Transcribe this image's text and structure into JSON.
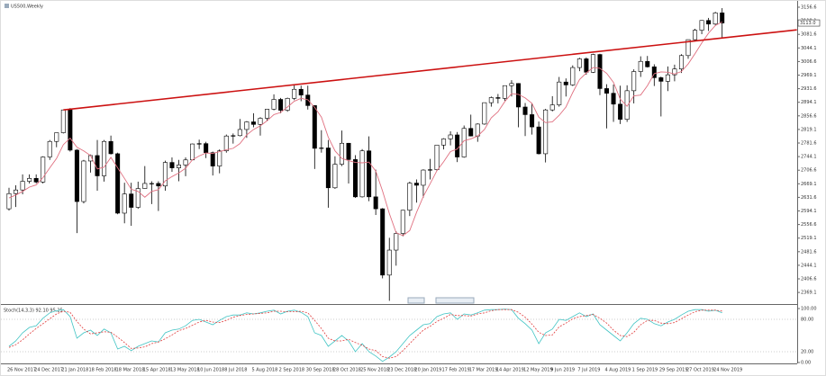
{
  "chart_data": [
    {
      "type": "candlestick",
      "title": "US500,Weekly",
      "categories": [
        "26 Nov 2017",
        null,
        null,
        null,
        "24 Dec 2017",
        null,
        null,
        null,
        "21 Jan 2018",
        null,
        null,
        null,
        "18 Feb 2018",
        null,
        null,
        null,
        "18 Mar 2018",
        null,
        null,
        null,
        "15 Apr 2018",
        null,
        null,
        null,
        "13 May 2018",
        null,
        null,
        null,
        "10 Jun 2018",
        null,
        null,
        null,
        "8 Jul 2018",
        null,
        null,
        null,
        "5 Aug 2018",
        null,
        null,
        null,
        "2 Sep 2018",
        null,
        null,
        null,
        "30 Sep 2018",
        null,
        null,
        null,
        "28 Oct 2018",
        null,
        null,
        null,
        "25 Nov 2018",
        null,
        null,
        null,
        "23 Dec 2018",
        null,
        null,
        null,
        "20 Jan 2019",
        null,
        null,
        null,
        "17 Feb 2019",
        null,
        null,
        null,
        "17 Mar 2019",
        null,
        null,
        null,
        "14 Apr 2019",
        null,
        null,
        null,
        "12 May 2019",
        null,
        null,
        null,
        "9 Jun 2019",
        null,
        null,
        null,
        "7 Jul 2019",
        null,
        null,
        null,
        "4 Aug 2019",
        null,
        null,
        null,
        "1 Sep 2019",
        null,
        null,
        null,
        "29 Sep 2019",
        null,
        null,
        null,
        "27 Oct 2019",
        null,
        null,
        null,
        "24 Nov 2019",
        null
      ],
      "candles": [
        [
          2600,
          2658,
          2595,
          2642
        ],
        [
          2642,
          2665,
          2605,
          2652
        ],
        [
          2652,
          2695,
          2640,
          2676
        ],
        [
          2676,
          2695,
          2670,
          2684
        ],
        [
          2684,
          2695,
          2670,
          2674
        ],
        [
          2674,
          2745,
          2670,
          2743
        ],
        [
          2743,
          2790,
          2735,
          2786
        ],
        [
          2786,
          2810,
          2770,
          2810
        ],
        [
          2810,
          2873,
          2808,
          2873
        ],
        [
          2873,
          2878,
          2758,
          2762
        ],
        [
          2762,
          2765,
          2533,
          2620
        ],
        [
          2620,
          2735,
          2615,
          2732
        ],
        [
          2732,
          2750,
          2700,
          2747
        ],
        [
          2747,
          2790,
          2650,
          2691
        ],
        [
          2691,
          2790,
          2675,
          2786
        ],
        [
          2786,
          2802,
          2750,
          2752
        ],
        [
          2752,
          2755,
          2585,
          2588
        ],
        [
          2588,
          2672,
          2560,
          2641
        ],
        [
          2641,
          2672,
          2553,
          2604
        ],
        [
          2604,
          2675,
          2600,
          2656
        ],
        [
          2656,
          2718,
          2655,
          2670
        ],
        [
          2670,
          2676,
          2613,
          2670
        ],
        [
          2670,
          2676,
          2594,
          2663
        ],
        [
          2663,
          2733,
          2650,
          2728
        ],
        [
          2728,
          2742,
          2702,
          2713
        ],
        [
          2713,
          2735,
          2676,
          2721
        ],
        [
          2721,
          2742,
          2690,
          2735
        ],
        [
          2735,
          2780,
          2735,
          2779
        ],
        [
          2779,
          2791,
          2765,
          2780
        ],
        [
          2780,
          2785,
          2740,
          2755
        ],
        [
          2755,
          2758,
          2692,
          2718
        ],
        [
          2718,
          2764,
          2698,
          2760
        ],
        [
          2760,
          2805,
          2755,
          2801
        ],
        [
          2801,
          2808,
          2780,
          2802
        ],
        [
          2802,
          2848,
          2800,
          2819
        ],
        [
          2819,
          2842,
          2796,
          2840
        ],
        [
          2840,
          2864,
          2825,
          2833
        ],
        [
          2833,
          2853,
          2802,
          2850
        ],
        [
          2850,
          2876,
          2842,
          2875
        ],
        [
          2875,
          2916,
          2872,
          2902
        ],
        [
          2902,
          2906,
          2864,
          2872
        ],
        [
          2872,
          2907,
          2868,
          2905
        ],
        [
          2905,
          2941,
          2900,
          2930
        ],
        [
          2930,
          2940,
          2897,
          2914
        ],
        [
          2914,
          2940,
          2874,
          2885
        ],
        [
          2885,
          2886,
          2710,
          2767
        ],
        [
          2767,
          2817,
          2755,
          2768
        ],
        [
          2768,
          2790,
          2603,
          2658
        ],
        [
          2658,
          2745,
          2655,
          2723
        ],
        [
          2723,
          2816,
          2718,
          2781
        ],
        [
          2781,
          2782,
          2670,
          2736
        ],
        [
          2736,
          2748,
          2630,
          2633
        ],
        [
          2633,
          2765,
          2631,
          2760
        ],
        [
          2760,
          2800,
          2621,
          2633
        ],
        [
          2633,
          2708,
          2583,
          2600
        ],
        [
          2600,
          2602,
          2408,
          2417
        ],
        [
          2417,
          2520,
          2346,
          2486
        ],
        [
          2486,
          2538,
          2443,
          2532
        ],
        [
          2532,
          2597,
          2524,
          2596
        ],
        [
          2596,
          2675,
          2580,
          2671
        ],
        [
          2671,
          2681,
          2617,
          2665
        ],
        [
          2665,
          2709,
          2631,
          2707
        ],
        [
          2707,
          2738,
          2681,
          2708
        ],
        [
          2708,
          2776,
          2705,
          2776
        ],
        [
          2776,
          2795,
          2764,
          2793
        ],
        [
          2793,
          2814,
          2775,
          2804
        ],
        [
          2804,
          2812,
          2729,
          2743
        ],
        [
          2743,
          2830,
          2741,
          2822
        ],
        [
          2822,
          2860,
          2800,
          2801
        ],
        [
          2801,
          2836,
          2785,
          2834
        ],
        [
          2834,
          2893,
          2832,
          2893
        ],
        [
          2893,
          2910,
          2882,
          2907
        ],
        [
          2907,
          2917,
          2891,
          2905
        ],
        [
          2905,
          2940,
          2898,
          2940
        ],
        [
          2940,
          2955,
          2910,
          2946
        ],
        [
          2946,
          2947,
          2825,
          2881
        ],
        [
          2881,
          2892,
          2801,
          2860
        ],
        [
          2860,
          2892,
          2805,
          2826
        ],
        [
          2826,
          2841,
          2750,
          2752
        ],
        [
          2752,
          2876,
          2728,
          2873
        ],
        [
          2873,
          2911,
          2869,
          2887
        ],
        [
          2887,
          2964,
          2882,
          2950
        ],
        [
          2950,
          2960,
          2910,
          2942
        ],
        [
          2942,
          2996,
          2939,
          2990
        ],
        [
          2990,
          3017,
          2980,
          3014
        ],
        [
          3014,
          3018,
          2970,
          2977
        ],
        [
          2977,
          3028,
          2975,
          3026
        ],
        [
          3026,
          3028,
          2914,
          2932
        ],
        [
          2932,
          2944,
          2822,
          2919
        ],
        [
          2919,
          2943,
          2840,
          2889
        ],
        [
          2889,
          2940,
          2834,
          2847
        ],
        [
          2847,
          2941,
          2840,
          2926
        ],
        [
          2926,
          2985,
          2891,
          2979
        ],
        [
          2979,
          3021,
          2964,
          3007
        ],
        [
          3007,
          3022,
          2990,
          2992
        ],
        [
          2992,
          2999,
          2939,
          2962
        ],
        [
          2962,
          2965,
          2855,
          2952
        ],
        [
          2952,
          2993,
          2925,
          2970
        ],
        [
          2970,
          2998,
          2952,
          2986
        ],
        [
          2986,
          3027,
          2975,
          3023
        ],
        [
          3023,
          3067,
          3014,
          3067
        ],
        [
          3067,
          3097,
          3062,
          3093
        ],
        [
          3093,
          3121,
          3082,
          3120
        ],
        [
          3120,
          3127,
          3091,
          3110
        ],
        [
          3110,
          3144,
          3107,
          3141
        ],
        [
          3141,
          3154,
          3070,
          3113
        ]
      ],
      "up_color": "#ffffff",
      "down_color": "#000000",
      "ma": {
        "color": "#e07080",
        "values": [
          2630,
          2638,
          2648,
          2660,
          2666,
          2686,
          2713,
          2739,
          2777,
          2795,
          2770,
          2760,
          2747,
          2710,
          2715,
          2742,
          2713,
          2684,
          2654,
          2648,
          2632,
          2648,
          2653,
          2677,
          2689,
          2699,
          2712,
          2735,
          2746,
          2754,
          2753,
          2758,
          2763,
          2767,
          2780,
          2804,
          2819,
          2829,
          2843,
          2860,
          2866,
          2881,
          2897,
          2905,
          2901,
          2880,
          2853,
          2798,
          2760,
          2739,
          2733,
          2728,
          2727,
          2729,
          2704,
          2649,
          2587,
          2534,
          2526,
          2540,
          2590,
          2634,
          2669,
          2705,
          2730,
          2758,
          2765,
          2788,
          2793,
          2801,
          2819,
          2851,
          2868,
          2896,
          2918,
          2916,
          2906,
          2891,
          2853,
          2838,
          2840,
          2858,
          2881,
          2921,
          2957,
          2975,
          2990,
          2988,
          2974,
          2949,
          2903,
          2883,
          2912,
          2914,
          2940,
          2973,
          2978,
          2977,
          2972,
          2979,
          3000,
          3028,
          3058,
          3085,
          3106,
          3116
        ]
      },
      "trendline": {
        "x": [
          8,
          116
        ],
        "y": [
          2873,
          3094
        ],
        "color": "#cc1111"
      },
      "price_label": {
        "value": 3113,
        "label": "3113.0"
      },
      "ylim": [
        2337.1,
        3171.5
      ],
      "yticks": [
        2369.1,
        2406.6,
        2444.1,
        2481.6,
        2519.1,
        2556.6,
        2594.1,
        2631.6,
        2669.1,
        2706.6,
        2744.1,
        2781.6,
        2819.1,
        2856.6,
        2894.1,
        2931.6,
        2969.1,
        3006.6,
        3044.1,
        3081.6,
        3119.1,
        3156.6
      ]
    },
    {
      "type": "line",
      "title": "Stoch(14,3,3) 92.10 95.25",
      "series": [
        {
          "color": "#40c4c4",
          "values": [
            30,
            40,
            55,
            65,
            68,
            82,
            92,
            96,
            98,
            85,
            45,
            55,
            60,
            50,
            62,
            55,
            25,
            30,
            22,
            30,
            35,
            40,
            38,
            55,
            60,
            62,
            68,
            78,
            80,
            75,
            70,
            78,
            85,
            88,
            88,
            92,
            90,
            92,
            95,
            97,
            90,
            95,
            97,
            93,
            85,
            55,
            50,
            30,
            40,
            50,
            40,
            20,
            35,
            20,
            12,
            2,
            10,
            20,
            35,
            50,
            60,
            70,
            72,
            85,
            90,
            92,
            80,
            90,
            88,
            92,
            97,
            98,
            98,
            99,
            98,
            82,
            72,
            60,
            35,
            55,
            62,
            80,
            78,
            85,
            92,
            85,
            90,
            70,
            60,
            50,
            40,
            55,
            72,
            82,
            80,
            72,
            68,
            75,
            80,
            88,
            95,
            98,
            98,
            95,
            97,
            92.1
          ]
        },
        {
          "color": "#e03c3c",
          "dash": true,
          "values": [
            28,
            33,
            42,
            53,
            63,
            72,
            81,
            90,
            95,
            93,
            76,
            62,
            53,
            55,
            57,
            56,
            47,
            37,
            26,
            27,
            29,
            35,
            38,
            44,
            51,
            59,
            63,
            69,
            75,
            78,
            75,
            74,
            78,
            84,
            87,
            89,
            90,
            91,
            92,
            95,
            95,
            94,
            94,
            95,
            92,
            78,
            63,
            45,
            40,
            40,
            43,
            37,
            32,
            25,
            22,
            11,
            8,
            11,
            22,
            35,
            48,
            60,
            67,
            76,
            82,
            89,
            87,
            87,
            86,
            90,
            92,
            96,
            98,
            98,
            98,
            93,
            84,
            71,
            56,
            50,
            51,
            66,
            73,
            81,
            85,
            87,
            89,
            82,
            73,
            60,
            50,
            48,
            56,
            70,
            78,
            78,
            73,
            72,
            74,
            81,
            88,
            94,
            97,
            97,
            97,
            95.25
          ]
        }
      ],
      "ylim": [
        0,
        100
      ],
      "yticks": [
        {
          "value": 0,
          "label": "0.00"
        },
        {
          "value": 20,
          "label": "20.00"
        },
        {
          "value": 80,
          "label": "80.00"
        },
        {
          "value": 100,
          "label": "100.00"
        }
      ]
    }
  ]
}
